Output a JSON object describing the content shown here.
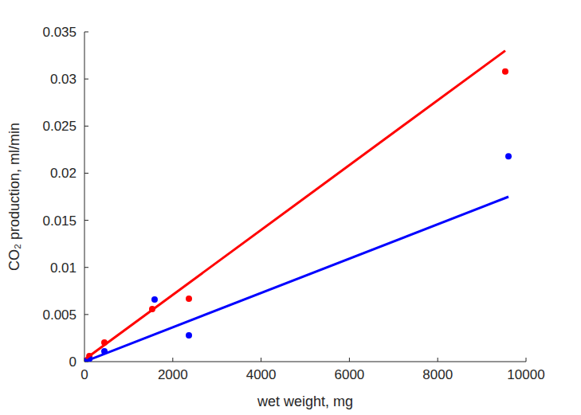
{
  "chart_data": {
    "type": "scatter",
    "x_label": "wet weight, mg",
    "y_label": "CO₂ production, ml/min",
    "xlim": [
      0,
      10000
    ],
    "xticks": [
      0,
      2000,
      4000,
      6000,
      8000,
      10000
    ],
    "ylim": [
      0,
      0.035
    ],
    "yticks": [
      0,
      0.005,
      0.01,
      0.015,
      0.02,
      0.025,
      0.03,
      0.035
    ],
    "grid": false,
    "series": [
      {
        "type": "scatter",
        "color": "#ff0000",
        "marker": "circle",
        "x": [
          30,
          110,
          451,
          1534,
          2365,
          9530
        ],
        "values": [
          0.0001,
          0.0006,
          0.00203,
          0.00558,
          0.00668,
          0.0308
        ]
      },
      {
        "type": "scatter",
        "color": "#0000ff",
        "marker": "circle",
        "x": [
          30,
          110,
          451,
          1588,
          2365,
          9603
        ],
        "values": [
          5e-05,
          0.0003,
          0.0011,
          0.0066,
          0.0028,
          0.0218
        ]
      },
      {
        "type": "line",
        "color": "#ff0000",
        "line_style": "solid",
        "x": [
          36,
          9530
        ],
        "values": [
          0.00034,
          0.033
        ]
      },
      {
        "type": "line",
        "color": "#0000ff",
        "line_style": "solid",
        "x": [
          0,
          9603
        ],
        "values": [
          0,
          0.0175
        ]
      }
    ]
  }
}
